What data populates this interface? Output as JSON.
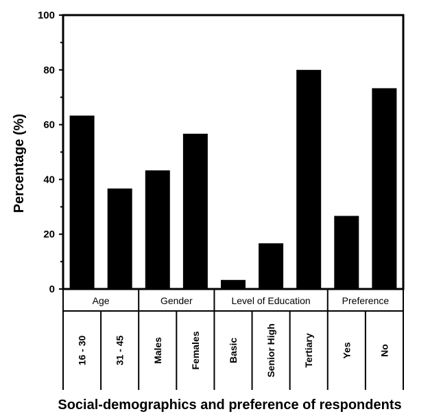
{
  "chart_data": {
    "type": "bar",
    "title": "",
    "xlabel": "Social-demographics and preference of respondents",
    "ylabel": "Percentage (%)",
    "ylim": [
      0,
      100
    ],
    "yticks": [
      "0",
      "20",
      "40",
      "60",
      "80",
      "100"
    ],
    "grid": false,
    "legend": "none",
    "bar_color": "#000000",
    "groups": [
      {
        "name": "Age",
        "categories": [
          "16 - 30",
          "31 - 45"
        ]
      },
      {
        "name": "Gender",
        "categories": [
          "Males",
          "Females"
        ]
      },
      {
        "name": "Level of Education",
        "categories": [
          "Basic",
          "Senior High",
          "Tertiary"
        ]
      },
      {
        "name": "Preference",
        "categories": [
          "Yes",
          "No"
        ]
      }
    ],
    "categories": [
      "16 - 30",
      "31 - 45",
      "Males",
      "Females",
      "Basic",
      "Senior High",
      "Tertiary",
      "Yes",
      "No"
    ],
    "values": [
      63.3,
      36.7,
      43.3,
      56.7,
      3.3,
      16.7,
      80.0,
      26.7,
      73.3
    ]
  }
}
